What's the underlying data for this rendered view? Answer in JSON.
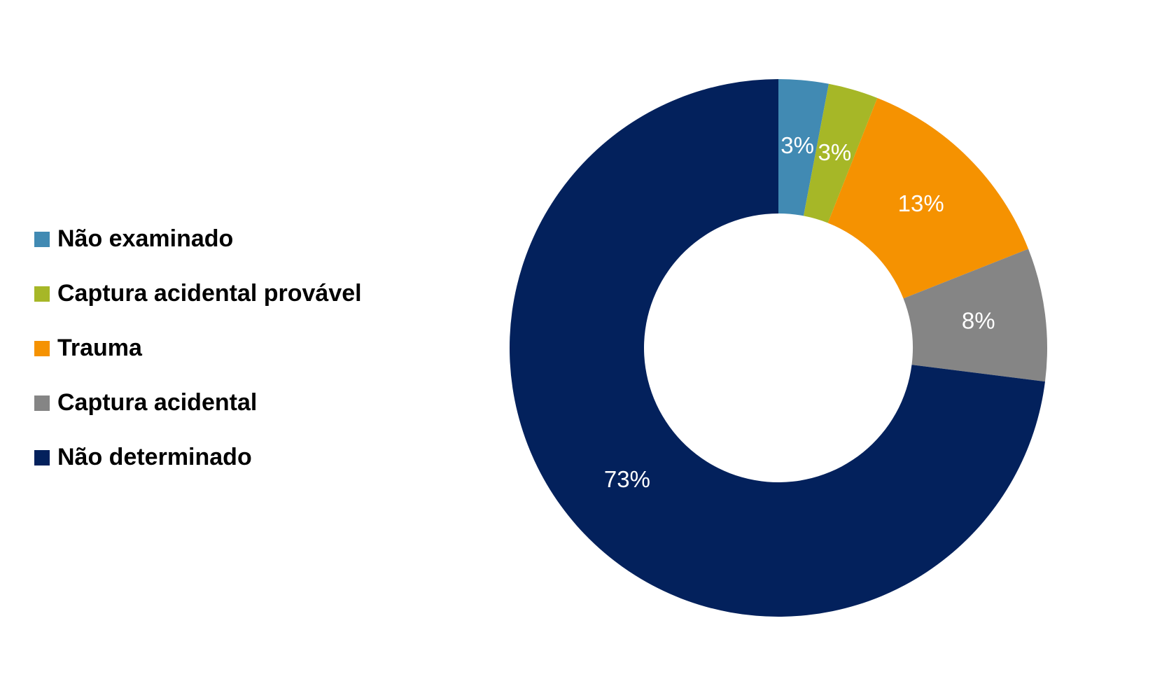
{
  "chart_data": {
    "type": "donut",
    "categories": [
      "Não examinado",
      "Captura acidental provável",
      "Trauma",
      "Captura acidental",
      "Não determinado"
    ],
    "values": [
      3,
      3,
      13,
      8,
      73
    ],
    "value_labels": [
      "3%",
      "3%",
      "13%",
      "8%",
      "73%"
    ],
    "colors": [
      "#418ab3",
      "#a6b727",
      "#f59201",
      "#858585",
      "#03215c"
    ],
    "legend": "left"
  }
}
